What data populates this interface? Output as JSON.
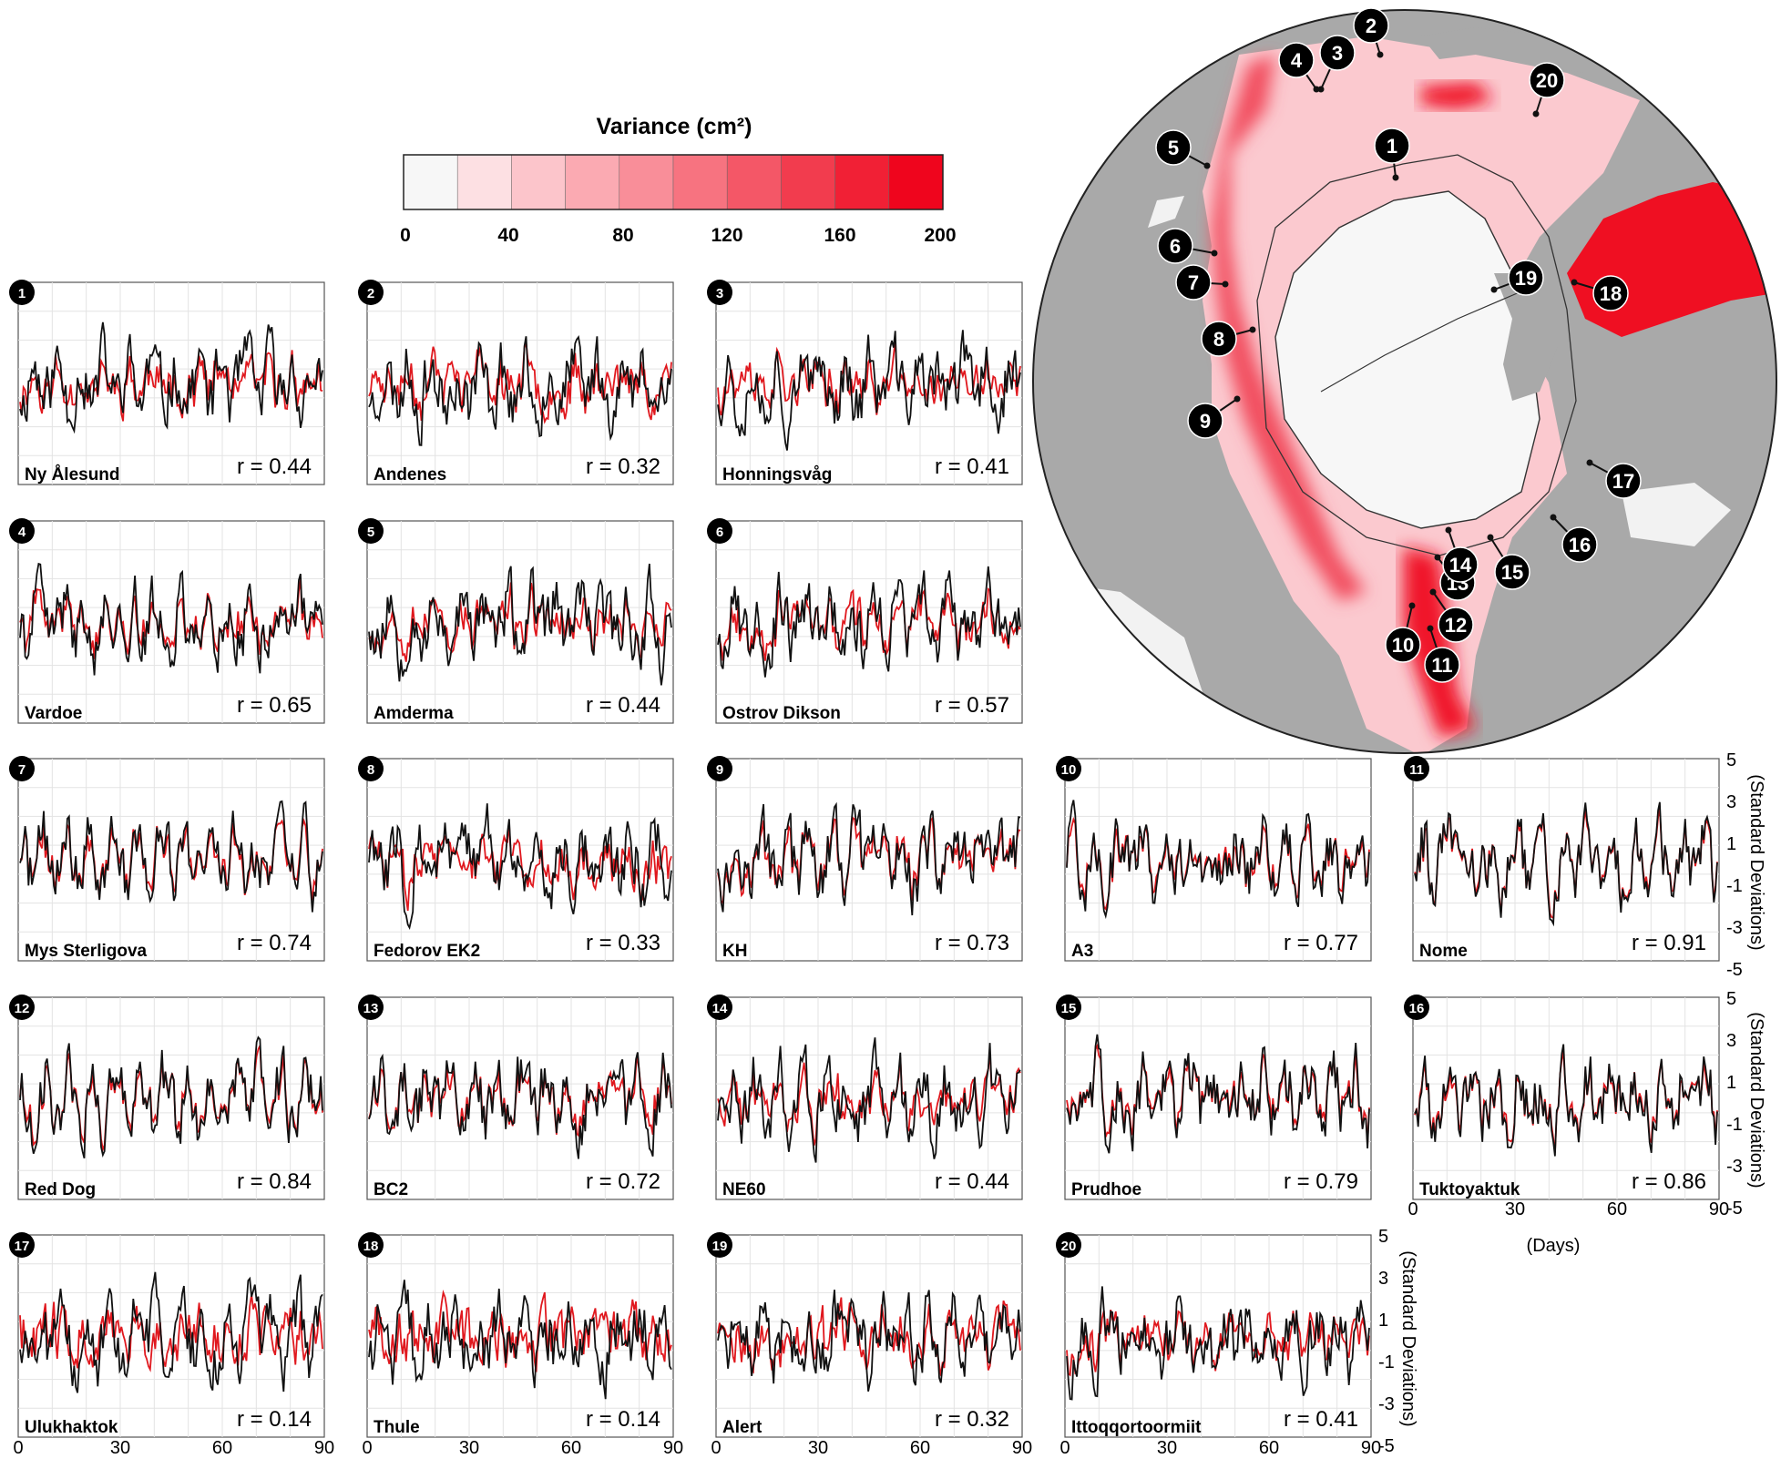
{
  "colorbar": {
    "title": "Variance (cm²)",
    "ticks": [
      "0",
      "40",
      "80",
      "120",
      "160",
      "200"
    ],
    "colors": [
      "#f7f7f7",
      "#fde0e3",
      "#fcc5cb",
      "#fbaab2",
      "#f98e99",
      "#f77380",
      "#f45767",
      "#f23c4e",
      "#f12035",
      "#ef051d"
    ]
  },
  "map": {
    "station_labels": [
      "1",
      "2",
      "3",
      "4",
      "5",
      "6",
      "7",
      "8",
      "9",
      "10",
      "11",
      "12",
      "13",
      "14",
      "15",
      "16",
      "17",
      "18",
      "19",
      "20"
    ]
  },
  "chart_data": {
    "type": "line",
    "title": "Variance (cm²)",
    "xlabel": "(Days)",
    "ylabel": "(Standard Deviations)",
    "xlim": [
      0,
      90
    ],
    "ylim": [
      -5,
      5
    ],
    "x_ticks": [
      "0",
      "30",
      "60",
      "90"
    ],
    "y_ticks": [
      "5",
      "3",
      "1",
      "-1",
      "-3",
      "-5"
    ],
    "series_colors": {
      "observed": "#111111",
      "model": "#e0181e"
    },
    "panels": [
      {
        "num": "1",
        "name": "Ny Ålesund",
        "r": "r = 0.44",
        "seed": 11
      },
      {
        "num": "2",
        "name": "Andenes",
        "r": "r = 0.32",
        "seed": 23
      },
      {
        "num": "3",
        "name": "Honningsvåg",
        "r": "r = 0.41",
        "seed": 37
      },
      {
        "num": "4",
        "name": "Vardoe",
        "r": "r = 0.65",
        "seed": 41
      },
      {
        "num": "5",
        "name": "Amderma",
        "r": "r = 0.44",
        "seed": 53
      },
      {
        "num": "6",
        "name": "Ostrov Dikson",
        "r": "r = 0.57",
        "seed": 67
      },
      {
        "num": "7",
        "name": "Mys Sterligova",
        "r": "r = 0.74",
        "seed": 71
      },
      {
        "num": "8",
        "name": "Fedorov EK2",
        "r": "r = 0.33",
        "seed": 83
      },
      {
        "num": "9",
        "name": "KH",
        "r": "r = 0.73",
        "seed": 97
      },
      {
        "num": "10",
        "name": "A3",
        "r": "r = 0.77",
        "seed": 101
      },
      {
        "num": "11",
        "name": "Nome",
        "r": "r = 0.91",
        "seed": 113
      },
      {
        "num": "12",
        "name": "Red Dog",
        "r": "r = 0.84",
        "seed": 127
      },
      {
        "num": "13",
        "name": "BC2",
        "r": "r = 0.72",
        "seed": 131
      },
      {
        "num": "14",
        "name": "NE60",
        "r": "r = 0.44",
        "seed": 149
      },
      {
        "num": "15",
        "name": "Prudhoe",
        "r": "r = 0.79",
        "seed": 151
      },
      {
        "num": "16",
        "name": "Tuktoyaktuk",
        "r": "r = 0.86",
        "seed": 163
      },
      {
        "num": "17",
        "name": "Ulukhaktok",
        "r": "r = 0.14",
        "seed": 173
      },
      {
        "num": "18",
        "name": "Thule",
        "r": "r = 0.14",
        "seed": 181
      },
      {
        "num": "19",
        "name": "Alert",
        "r": "r = 0.32",
        "seed": 191
      },
      {
        "num": "20",
        "name": "Ittoqqortoormiit",
        "r": "r = 0.41",
        "seed": 199
      }
    ]
  }
}
